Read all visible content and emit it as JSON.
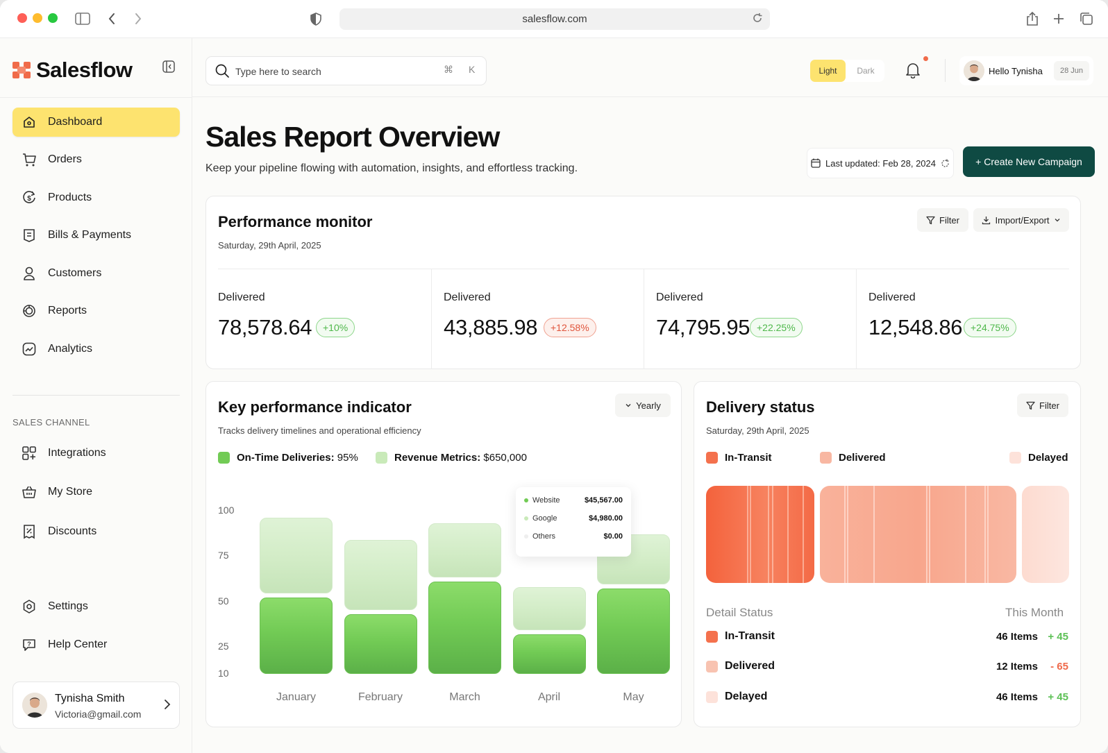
{
  "browser": {
    "url": "salesflow.com"
  },
  "brand": {
    "name": "Salesflow",
    "accent": "#f06b4a"
  },
  "sidebar": {
    "items": [
      {
        "label": "Dashboard",
        "icon": "home-icon"
      },
      {
        "label": "Orders",
        "icon": "cart-icon"
      },
      {
        "label": "Products",
        "icon": "dollar-refresh-icon"
      },
      {
        "label": "Bills & Payments",
        "icon": "receipt-icon"
      },
      {
        "label": "Customers",
        "icon": "user-icon"
      },
      {
        "label": "Reports",
        "icon": "reports-icon"
      },
      {
        "label": "Analytics",
        "icon": "analytics-icon"
      }
    ],
    "section_label": "SALES CHANNEL",
    "channel_items": [
      {
        "label": "Integrations",
        "icon": "grid-plus-icon"
      },
      {
        "label": "My Store",
        "icon": "basket-icon"
      },
      {
        "label": "Discounts",
        "icon": "discount-icon"
      }
    ],
    "bottom_items": [
      {
        "label": "Settings",
        "icon": "gear-icon"
      },
      {
        "label": "Help Center",
        "icon": "help-icon"
      }
    ],
    "profile": {
      "name": "Tynisha Smith",
      "email": "Victoria@gmail.com"
    }
  },
  "topbar": {
    "search_placeholder": "Type here to search",
    "shortcut_symbol": "⌘",
    "shortcut_key": "K",
    "theme": {
      "light": "Light",
      "dark": "Dark",
      "active": "Light"
    },
    "greeting": "Hello Tynisha",
    "date": "28 Jun"
  },
  "header": {
    "title": "Sales Report Overview",
    "subtitle": "Keep your pipeline flowing with automation, insights, and effortless tracking.",
    "last_updated": "Last updated: Feb 28, 2024",
    "cta": "+ Create New Campaign"
  },
  "performance": {
    "title": "Performance monitor",
    "date": "Saturday, 29th April, 2025",
    "filter": "Filter",
    "import_export": "Import/Export",
    "metrics": [
      {
        "label": "Delivered",
        "value": "78,578.64",
        "change": "+10%",
        "trend": "up"
      },
      {
        "label": "Delivered",
        "value": "43,885.98",
        "change": "+12.58%",
        "trend": "down"
      },
      {
        "label": "Delivered",
        "value": "74,795.95",
        "change": "+22.25%",
        "trend": "up"
      },
      {
        "label": "Delivered",
        "value": "12,548.86",
        "change": "+24.75%",
        "trend": "up"
      }
    ]
  },
  "kpi": {
    "title": "Key performance indicator",
    "subtitle": "Tracks delivery timelines and operational efficiency",
    "period": "Yearly",
    "legend": [
      {
        "label": "On-Time Deliveries:",
        "value": "95%",
        "color": "#72cb55"
      },
      {
        "label": "Revenue Metrics:",
        "value": "$650,000",
        "color": "#c9eab9"
      }
    ],
    "tooltip": [
      {
        "label": "Website",
        "value": "$45,567.00",
        "color": "#72cb55"
      },
      {
        "label": "Google",
        "value": "$4,980.00",
        "color": "#c9eab9"
      },
      {
        "label": "Others",
        "value": "$0.00",
        "color": "#eeeeee"
      }
    ]
  },
  "chart_data": {
    "type": "bar",
    "stacked": true,
    "title": "Key performance indicator",
    "categories": [
      "January",
      "February",
      "March",
      "April",
      "May"
    ],
    "y_ticks": [
      "100",
      "75",
      "50",
      "25",
      "10"
    ],
    "y_tick_values": [
      100,
      75,
      50,
      25,
      10
    ],
    "ylim": [
      10,
      100
    ],
    "series": [
      {
        "name": "On-Time Deliveries",
        "color": "#72cb55",
        "values": [
          42,
          33,
          51,
          22,
          47
        ]
      },
      {
        "name": "Revenue Metrics",
        "color": "#c9eab9",
        "values": [
          44,
          41,
          32,
          26,
          30
        ]
      }
    ]
  },
  "delivery": {
    "title": "Delivery status",
    "date": "Saturday, 29th April, 2025",
    "filter": "Filter",
    "legend": [
      {
        "label": "In-Transit",
        "color": "#f4714d"
      },
      {
        "label": "Delivered",
        "color": "#f8b7a2"
      },
      {
        "label": "Delayed",
        "color": "#fde2da"
      }
    ],
    "detail_label": "Detail Status",
    "period_label": "This Month",
    "rows": [
      {
        "label": "In-Transit",
        "count": "46 Items",
        "change": "+ 45",
        "trend": "up",
        "color": "#f4714d"
      },
      {
        "label": "Delivered",
        "count": "12 Items",
        "change": "- 65",
        "trend": "down",
        "color": "#f8c3b1"
      },
      {
        "label": "Delayed",
        "count": "46 Items",
        "change": "+ 45",
        "trend": "up",
        "color": "#fde2da"
      }
    ],
    "colors": {
      "up": "#5cc055",
      "down": "#ef6a4b"
    }
  }
}
